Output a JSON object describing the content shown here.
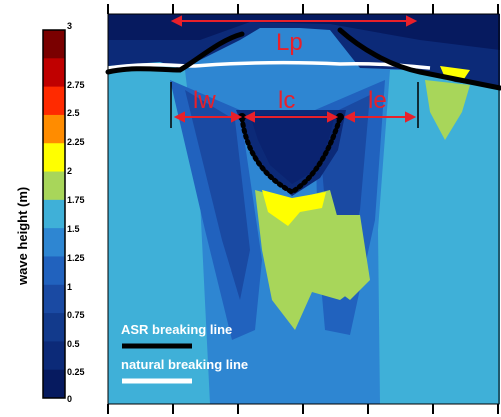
{
  "colorbar": {
    "label": "wave height (m)",
    "ticks": [
      "3",
      "2.75",
      "2.5",
      "2.25",
      "2",
      "1.75",
      "1.5",
      "1.25",
      "1",
      "0.75",
      "0.5",
      "0.25",
      "0"
    ],
    "colors": [
      "#7a0000",
      "#c00000",
      "#ff2a00",
      "#ff8c00",
      "#ffff00",
      "#a8d65a",
      "#3fb0d8",
      "#2e86d2",
      "#2162be",
      "#1a4aa3",
      "#123a8c",
      "#0c2a78",
      "#061a5f"
    ]
  },
  "annotations": {
    "lp": "Lp",
    "lw": "lw",
    "lc": "lc",
    "le": "le"
  },
  "legend": {
    "asr": "ASR breaking line",
    "natural": "natural breaking line"
  },
  "colors": {
    "annotation": "#e8202a",
    "asr_line": "#000000",
    "natural_line": "#ffffff"
  }
}
